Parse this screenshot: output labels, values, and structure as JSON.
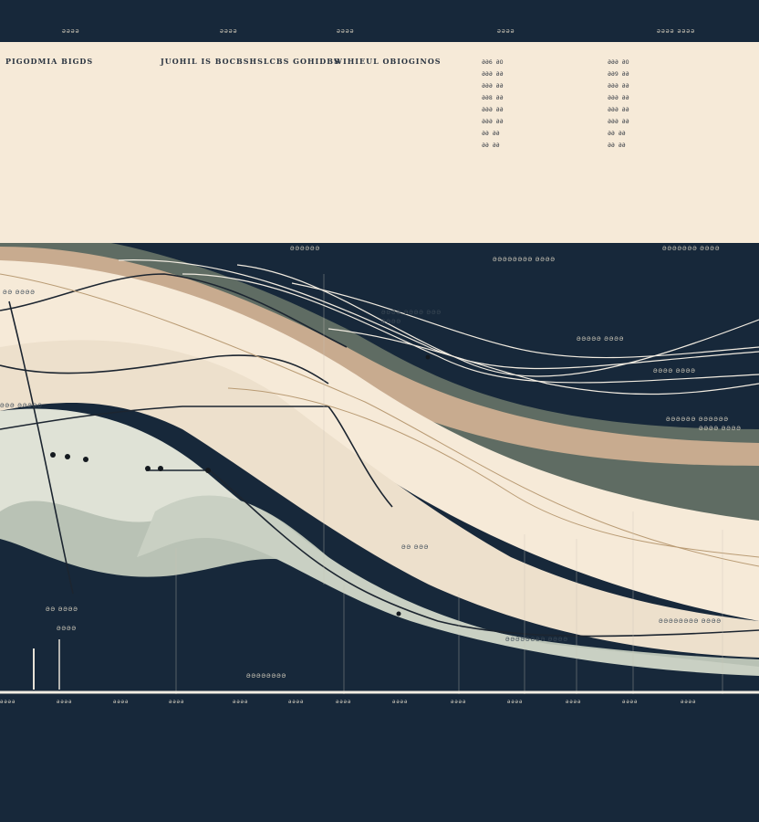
{
  "top_labels": [
    "ǝǝǝǝ",
    "ǝǝǝǝ",
    "ǝǝǝǝ",
    "ǝǝǝǝ",
    "ǝǝǝǝ ǝǝǝǝ"
  ],
  "panel_headers": [
    "PIGODMIA BIGDS",
    "JUOHIL IS BOCBSHSLCBS GOHIDBS",
    "WIHIEUL OBIOGINOS"
  ],
  "key_codes": [
    "ƏƏ6 ƏO",
    "ƏƏƏ ƏƏ",
    "ƏƏƏ ƏƏ",
    "ƏƏ8 ƏƏ",
    "ƏƏƏ ƏƏ",
    "ƏƏƏ ƏƏ",
    "ƏƏ ƏƏ",
    "ƏƏ ƏƏ"
  ],
  "key_codes_right": [
    "ƏƏƏ ƏO",
    "ƏƏ9 ƏƏ",
    "ƏƏƏ ƏƏ",
    "ƏƏƏ ƏƏ",
    "ƏƏƏ ƏƏ",
    "ƏƏƏ ƏƏ",
    "ƏƏ ƏƏ",
    "ƏƏ ƏƏ"
  ],
  "axis_labels": [
    "ǝǝǝǝ",
    "ǝǝǝǝ",
    "ǝǝǝǝ",
    "ǝǝǝǝ",
    "ǝǝǝǝ",
    "ǝǝǝǝ",
    "ǝǝǝǝ",
    "ǝǝǝǝ",
    "ǝǝǝǝ",
    "ǝǝǝǝ",
    "ǝǝǝǝ",
    "ǝǝǝǝ",
    "ǝǝǝǝ"
  ],
  "notes": {
    "upper_left": "ƏƏ ƏƏƏƏ",
    "band_center": "ƏƏƏƏ ƏƏƏƏ ƏƏƏ",
    "band_center2": "ƏƏƏƏ",
    "right_1": "ƏƏƏƏƏƏ ƏƏƏƏƏƏ",
    "right_2": "ƏƏƏƏ ƏƏƏƏ",
    "left_mid": "ƏƏƏ ƏƏƏƏƏ",
    "lower_left": "ƏƏ ƏƏƏƏ",
    "lower_left2": "ƏƏƏƏ",
    "bottom_center": "ƏƏƏƏƏƏƏƏ",
    "bottom_right": "ƏƏƏƏƏƏƏƏ ƏƏƏƏ",
    "mid_right": "ƏƏƏƏƏ ƏƏƏƏ",
    "mid_right2": "ƏƏƏƏ ƏƏƏƏ",
    "panel_low1": "ƏƏƏƏƏƏ",
    "panel_low2": "ƏƏƏƏƏƏƏƏ ƏƏƏƏ",
    "panel_low3": "ƏƏƏƏƏƏƏ ƏƏƏƏ",
    "mid_dark": "ƏƏ ƏƏƏ",
    "band_right": "ƏƏƏƏƏƏƏƏ ƏƏƏƏ"
  },
  "colors": {
    "navy": "#17283a",
    "cream": "#f6ead8",
    "sage": "#8d9a8f",
    "sand": "#c8ab8f",
    "pale_green": "#dfe2d6",
    "line": "#2b3642"
  }
}
